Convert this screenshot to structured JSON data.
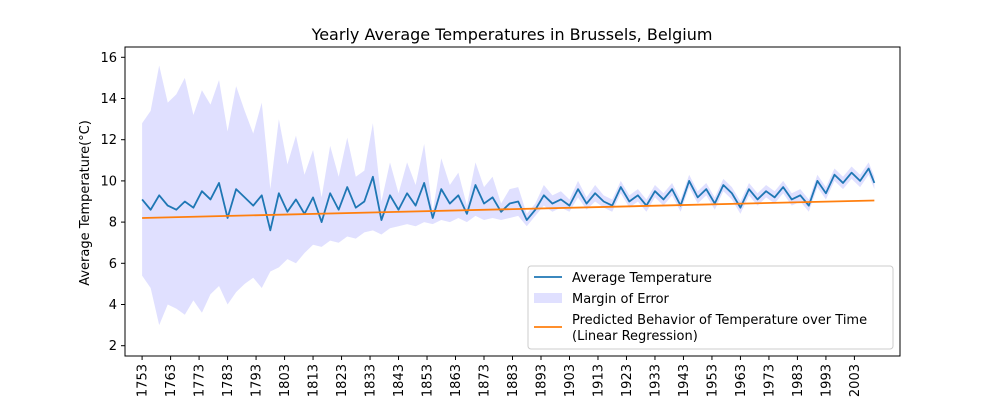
{
  "chart_data": {
    "type": "line",
    "title": "Yearly Average Temperatures in Brussels, Belgium",
    "xlabel": "",
    "ylabel": "Average Temperature(°C)",
    "xlim": [
      1747,
      2019
    ],
    "ylim": [
      1.5,
      16.5
    ],
    "x_ticks": [
      1753,
      1763,
      1773,
      1783,
      1793,
      1803,
      1813,
      1823,
      1833,
      1843,
      1853,
      1863,
      1873,
      1883,
      1893,
      1903,
      1913,
      1923,
      1933,
      1943,
      1953,
      1963,
      1973,
      1983,
      1993,
      2003
    ],
    "y_ticks": [
      2,
      4,
      6,
      8,
      10,
      12,
      14,
      16
    ],
    "grid": false,
    "legend_position": "lower-right",
    "colors": {
      "average": "#1f77b4",
      "margin": "#e0e0ff",
      "regression": "#ff7f0e"
    },
    "x": [
      1753,
      1756,
      1759,
      1762,
      1765,
      1768,
      1771,
      1774,
      1777,
      1780,
      1783,
      1786,
      1789,
      1792,
      1795,
      1798,
      1801,
      1804,
      1807,
      1810,
      1813,
      1816,
      1819,
      1822,
      1825,
      1828,
      1831,
      1834,
      1837,
      1840,
      1843,
      1846,
      1849,
      1852,
      1855,
      1858,
      1861,
      1864,
      1867,
      1870,
      1873,
      1876,
      1879,
      1882,
      1885,
      1888,
      1891,
      1894,
      1897,
      1900,
      1903,
      1906,
      1909,
      1912,
      1915,
      1918,
      1921,
      1924,
      1927,
      1930,
      1933,
      1936,
      1939,
      1942,
      1945,
      1948,
      1951,
      1954,
      1957,
      1960,
      1963,
      1966,
      1969,
      1972,
      1975,
      1978,
      1981,
      1984,
      1987,
      1990,
      1993,
      1996,
      1999,
      2002,
      2005,
      2008,
      2010
    ],
    "series": [
      {
        "name": "Average Temperature",
        "values": [
          9.1,
          8.6,
          9.3,
          8.8,
          8.6,
          9.0,
          8.7,
          9.5,
          9.1,
          9.9,
          8.2,
          9.6,
          9.2,
          8.8,
          9.3,
          7.6,
          9.4,
          8.5,
          9.1,
          8.4,
          9.2,
          8.0,
          9.4,
          8.6,
          9.7,
          8.7,
          9.0,
          10.2,
          8.1,
          9.3,
          8.6,
          9.4,
          8.8,
          9.9,
          8.2,
          9.6,
          8.9,
          9.3,
          8.4,
          9.8,
          8.9,
          9.2,
          8.5,
          8.9,
          9.0,
          8.1,
          8.6,
          9.3,
          8.9,
          9.1,
          8.8,
          9.6,
          8.9,
          9.4,
          9.0,
          8.8,
          9.7,
          9.0,
          9.3,
          8.8,
          9.5,
          9.1,
          9.6,
          8.8,
          10.0,
          9.2,
          9.6,
          8.9,
          9.8,
          9.4,
          8.7,
          9.6,
          9.1,
          9.5,
          9.2,
          9.7,
          9.1,
          9.3,
          8.8,
          10.0,
          9.4,
          10.3,
          9.9,
          10.4,
          10.0,
          10.6,
          9.9
        ]
      },
      {
        "name": "Margin of Error",
        "lower": [
          5.4,
          4.8,
          3.0,
          4.0,
          3.8,
          3.5,
          4.2,
          3.6,
          4.5,
          4.9,
          4.0,
          4.6,
          5.0,
          5.3,
          4.8,
          5.6,
          5.8,
          6.2,
          6.0,
          6.5,
          6.9,
          6.8,
          7.1,
          7.0,
          7.3,
          7.2,
          7.5,
          7.6,
          7.4,
          7.7,
          7.8,
          7.9,
          7.8,
          8.0,
          7.9,
          8.1,
          8.0,
          8.2,
          8.0,
          8.3,
          8.1,
          8.2,
          8.1,
          8.2,
          8.3,
          7.8,
          8.3,
          8.8,
          8.5,
          8.7,
          8.5,
          9.2,
          8.6,
          9.0,
          8.7,
          8.5,
          9.4,
          8.7,
          9.0,
          8.5,
          9.2,
          8.8,
          9.3,
          8.5,
          9.7,
          8.9,
          9.3,
          8.6,
          9.5,
          9.1,
          8.4,
          9.3,
          8.8,
          9.2,
          8.9,
          9.4,
          8.8,
          9.0,
          8.5,
          9.7,
          9.1,
          10.0,
          9.6,
          10.1,
          9.7,
          10.3,
          9.6
        ],
        "upper": [
          12.8,
          13.4,
          15.6,
          13.8,
          14.2,
          15.0,
          13.2,
          14.4,
          13.7,
          14.9,
          12.4,
          14.6,
          13.4,
          12.3,
          13.8,
          9.6,
          13.0,
          10.8,
          12.2,
          10.3,
          11.5,
          9.2,
          11.7,
          10.2,
          12.1,
          10.2,
          10.5,
          12.8,
          9.0,
          10.9,
          9.4,
          10.9,
          9.8,
          11.8,
          8.5,
          11.1,
          9.8,
          10.4,
          8.8,
          10.9,
          9.7,
          10.2,
          8.9,
          9.6,
          9.7,
          8.4,
          8.9,
          9.8,
          9.3,
          9.5,
          9.1,
          10.0,
          9.2,
          9.8,
          9.3,
          9.1,
          10.0,
          9.3,
          9.6,
          9.1,
          9.8,
          9.4,
          9.9,
          9.1,
          10.3,
          9.5,
          9.9,
          9.2,
          10.1,
          9.7,
          9.0,
          9.9,
          9.4,
          9.8,
          9.5,
          10.0,
          9.4,
          9.6,
          9.1,
          10.3,
          9.7,
          10.6,
          10.2,
          10.7,
          10.3,
          10.9,
          10.2
        ]
      },
      {
        "name": "Predicted Behavior of Temperature over Time\n(Linear Regression)",
        "x": [
          1753,
          2010
        ],
        "values": [
          8.2,
          9.05
        ]
      }
    ],
    "legend": [
      "Average Temperature",
      "Margin of Error",
      "Predicted Behavior of Temperature over Time",
      "(Linear Regression)"
    ]
  }
}
